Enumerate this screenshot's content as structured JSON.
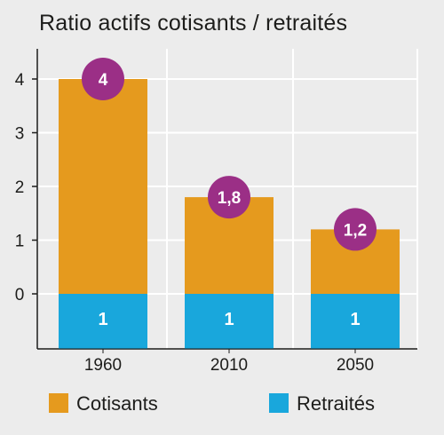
{
  "chart_data": {
    "type": "bar",
    "title": "Ratio actifs cotisants / retraités",
    "categories": [
      "1960",
      "2010",
      "2050"
    ],
    "series": [
      {
        "name": "Cotisants",
        "values": [
          4,
          1.8,
          1.2
        ],
        "value_labels": [
          "4",
          "1,8",
          "1,2"
        ]
      },
      {
        "name": "Retraités",
        "values": [
          1,
          1,
          1
        ],
        "value_labels": [
          "1",
          "1",
          "1"
        ]
      }
    ],
    "yticks": [
      "0",
      "1",
      "2",
      "3",
      "4"
    ],
    "ylim": [
      -1,
      4.5
    ],
    "grid": true,
    "legend": "bottom",
    "colors": {
      "cotisants": "#e59a1e",
      "retraites": "#19a7dc",
      "badge": "#9b2f86",
      "grid": "#ffffff",
      "background": "#ececec"
    }
  }
}
